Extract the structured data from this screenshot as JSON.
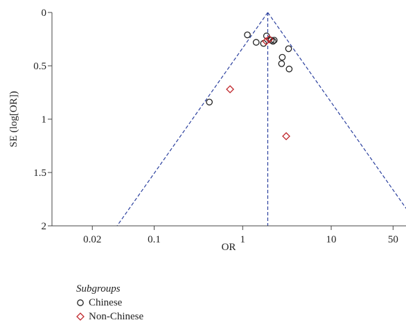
{
  "chart_data": {
    "type": "scatter",
    "title": "",
    "xlabel": "OR",
    "ylabel": "SE (log[OR])",
    "x_scale": "log",
    "xlim": [
      0.007,
      70
    ],
    "ylim": [
      0,
      2
    ],
    "y_inverted": true,
    "x_ticks": [
      0.02,
      0.1,
      1,
      10,
      50
    ],
    "x_tick_labels": [
      "0.02",
      "0.1",
      "1",
      "10",
      "50"
    ],
    "y_ticks": [
      0,
      0.5,
      1,
      1.5,
      2
    ],
    "y_tick_labels": [
      "0",
      "0.5",
      "1",
      "1.5",
      "2"
    ],
    "pooled_or": 1.92,
    "funnel_ci": "95% pseudo-confidence limits",
    "legend": {
      "title": "Subgroups",
      "placement": "bottom-left"
    },
    "series": [
      {
        "name": "Chinese",
        "marker": "circle",
        "color": "#222222",
        "points": [
          {
            "x": 1.13,
            "y": 0.21
          },
          {
            "x": 1.42,
            "y": 0.28
          },
          {
            "x": 1.72,
            "y": 0.29
          },
          {
            "x": 1.86,
            "y": 0.22
          },
          {
            "x": 2.1,
            "y": 0.26
          },
          {
            "x": 2.2,
            "y": 0.27
          },
          {
            "x": 2.27,
            "y": 0.26
          },
          {
            "x": 3.3,
            "y": 0.34
          },
          {
            "x": 2.8,
            "y": 0.42
          },
          {
            "x": 2.75,
            "y": 0.48
          },
          {
            "x": 3.35,
            "y": 0.53
          },
          {
            "x": 0.42,
            "y": 0.84
          }
        ]
      },
      {
        "name": "Non-Chinese",
        "marker": "diamond",
        "color": "#c0282d",
        "points": [
          {
            "x": 1.84,
            "y": 0.27
          },
          {
            "x": 2.0,
            "y": 0.25
          },
          {
            "x": 0.72,
            "y": 0.72
          },
          {
            "x": 3.1,
            "y": 1.16
          }
        ]
      }
    ],
    "guide_color": "#2a3f9e"
  }
}
